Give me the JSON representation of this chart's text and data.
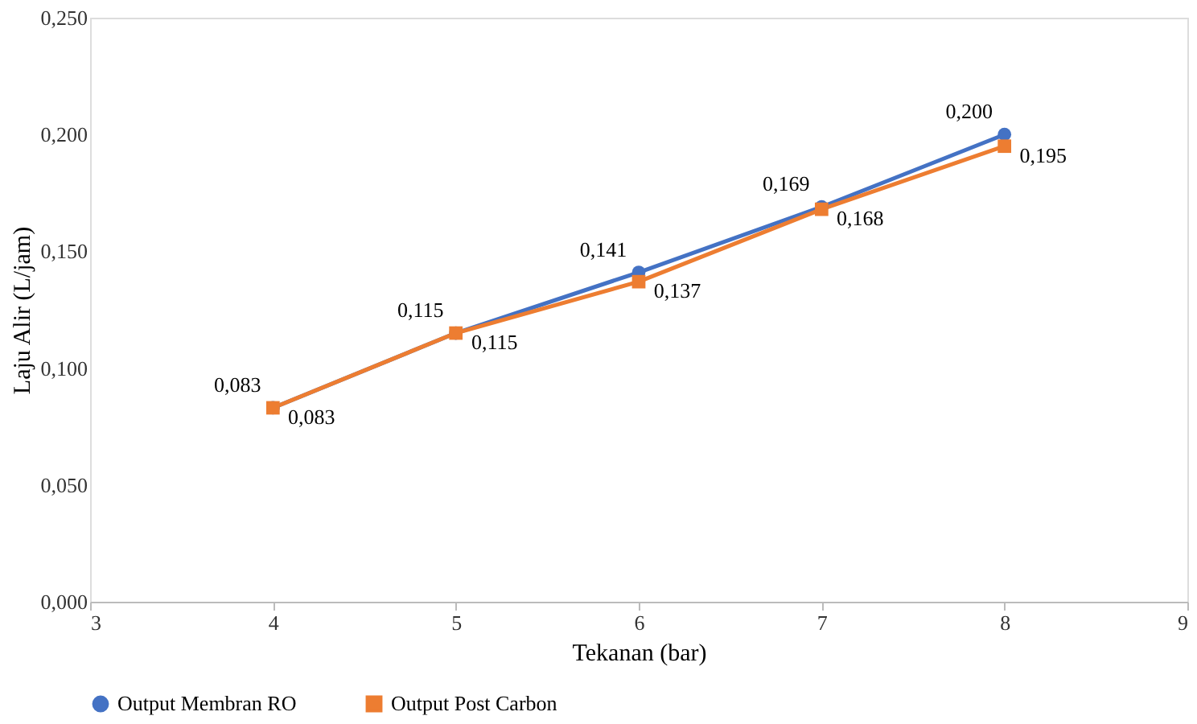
{
  "chart_data": {
    "type": "line",
    "xlabel": "Tekanan (bar)",
    "ylabel": "Laju Alir (L/jam)",
    "x": [
      4,
      5,
      6,
      7,
      8
    ],
    "series": [
      {
        "name": "Output Membran RO",
        "color": "#4472c4",
        "marker": "circle",
        "values": [
          0.083,
          0.115,
          0.141,
          0.169,
          0.2
        ],
        "value_labels": [
          "0,083",
          "0,115",
          "0,141",
          "0,169",
          "0,200"
        ]
      },
      {
        "name": "Output Post Carbon",
        "color": "#ed7d31",
        "marker": "square",
        "values": [
          0.083,
          0.115,
          0.137,
          0.168,
          0.195
        ],
        "value_labels": [
          "0,083",
          "0,115",
          "0,137",
          "0,168",
          "0,195"
        ]
      }
    ],
    "xlim": [
      3,
      9
    ],
    "xticks": [
      3,
      4,
      5,
      6,
      7,
      8,
      9
    ],
    "ylim": [
      0,
      0.25
    ],
    "yticks": [
      {
        "value": 0,
        "label": "0,000"
      },
      {
        "value": 0.05,
        "label": "0,050"
      },
      {
        "value": 0.1,
        "label": "0,100"
      },
      {
        "value": 0.15,
        "label": "0,150"
      },
      {
        "value": 0.2,
        "label": "0,200"
      },
      {
        "value": 0.25,
        "label": "0,250"
      }
    ],
    "grid": false,
    "legend": "bottom",
    "line_style": "solid"
  }
}
